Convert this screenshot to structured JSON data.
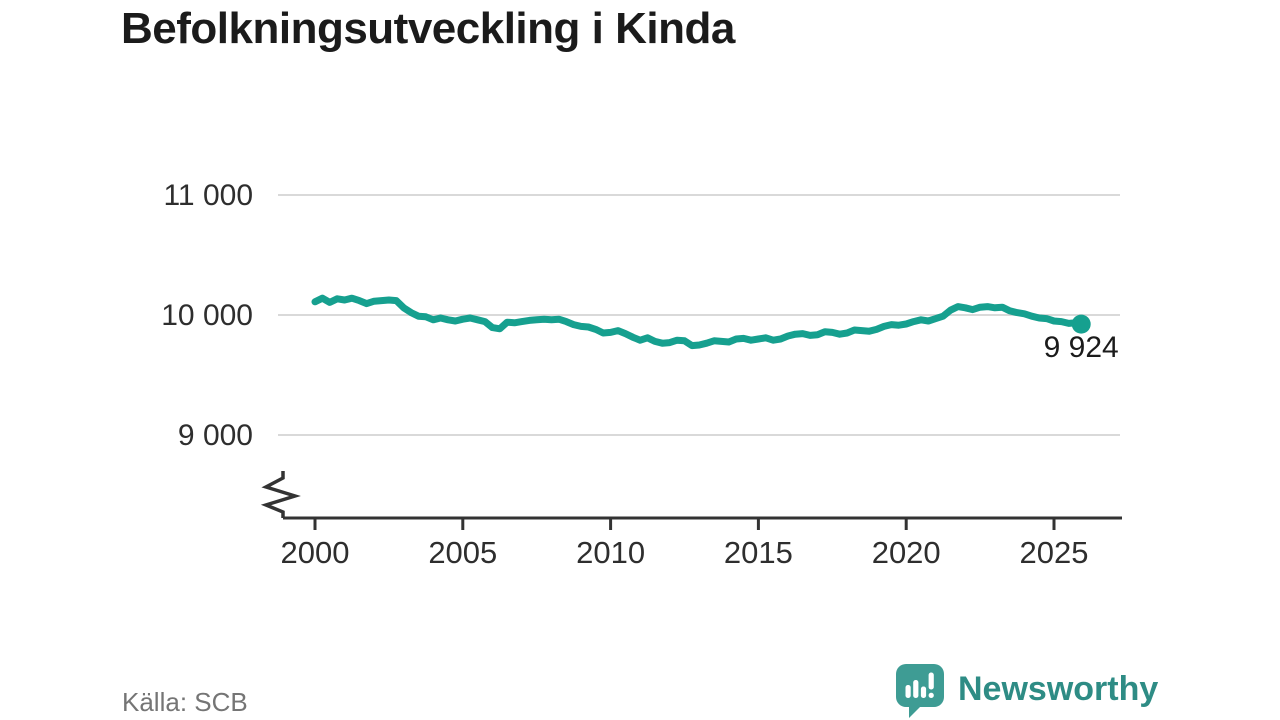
{
  "title": "Befolkningsutveckling i Kinda",
  "source": {
    "label": "Källa: SCB"
  },
  "brand": {
    "name": "Newsworthy",
    "icon_color": "#3e9c94",
    "text_color": "#2e8c85"
  },
  "chart_data": {
    "type": "line",
    "title": "Befolkningsutveckling i Kinda",
    "xlabel": "",
    "ylabel": "",
    "unit": "invånare",
    "grid": "horizontal",
    "axis_break": true,
    "xlim": [
      1999,
      2027.3
    ],
    "ylim_displayed": [
      8700,
      11300
    ],
    "line_color": "#16a08f",
    "gridline_color": "#d9d9d9",
    "axis_color": "#333333",
    "y_ticks": [
      {
        "value": 11000,
        "label": "11 000"
      },
      {
        "value": 10000,
        "label": "10 000"
      },
      {
        "value": 9000,
        "label": "9 000"
      }
    ],
    "x_ticks": [
      {
        "value": 2000,
        "label": "2000"
      },
      {
        "value": 2005,
        "label": "2005"
      },
      {
        "value": 2010,
        "label": "2010"
      },
      {
        "value": 2015,
        "label": "2015"
      },
      {
        "value": 2020,
        "label": "2020"
      },
      {
        "value": 2025,
        "label": "2025"
      }
    ],
    "end_label": {
      "value": 9924,
      "label": "9 924"
    },
    "series": [
      {
        "name": "Befolkning i Kinda",
        "color": "#16a08f",
        "points": [
          [
            2000.0,
            10110
          ],
          [
            2000.25,
            10140
          ],
          [
            2000.5,
            10105
          ],
          [
            2000.75,
            10135
          ],
          [
            2001.0,
            10125
          ],
          [
            2001.25,
            10140
          ],
          [
            2001.5,
            10120
          ],
          [
            2001.75,
            10095
          ],
          [
            2002.0,
            10115
          ],
          [
            2002.25,
            10120
          ],
          [
            2002.5,
            10125
          ],
          [
            2002.75,
            10120
          ],
          [
            2003.0,
            10060
          ],
          [
            2003.25,
            10020
          ],
          [
            2003.5,
            9990
          ],
          [
            2003.75,
            9985
          ],
          [
            2004.0,
            9960
          ],
          [
            2004.25,
            9975
          ],
          [
            2004.5,
            9960
          ],
          [
            2004.75,
            9950
          ],
          [
            2005.0,
            9965
          ],
          [
            2005.25,
            9975
          ],
          [
            2005.5,
            9960
          ],
          [
            2005.75,
            9945
          ],
          [
            2006.0,
            9895
          ],
          [
            2006.25,
            9885
          ],
          [
            2006.5,
            9940
          ],
          [
            2006.75,
            9935
          ],
          [
            2007.0,
            9945
          ],
          [
            2007.25,
            9955
          ],
          [
            2007.5,
            9960
          ],
          [
            2007.75,
            9965
          ],
          [
            2008.0,
            9960
          ],
          [
            2008.25,
            9965
          ],
          [
            2008.5,
            9945
          ],
          [
            2008.75,
            9920
          ],
          [
            2009.0,
            9905
          ],
          [
            2009.25,
            9900
          ],
          [
            2009.5,
            9880
          ],
          [
            2009.75,
            9850
          ],
          [
            2010.0,
            9855
          ],
          [
            2010.25,
            9870
          ],
          [
            2010.5,
            9845
          ],
          [
            2010.75,
            9815
          ],
          [
            2011.0,
            9790
          ],
          [
            2011.25,
            9810
          ],
          [
            2011.5,
            9780
          ],
          [
            2011.75,
            9765
          ],
          [
            2012.0,
            9770
          ],
          [
            2012.25,
            9790
          ],
          [
            2012.5,
            9785
          ],
          [
            2012.75,
            9745
          ],
          [
            2013.0,
            9750
          ],
          [
            2013.25,
            9765
          ],
          [
            2013.5,
            9785
          ],
          [
            2013.75,
            9780
          ],
          [
            2014.0,
            9775
          ],
          [
            2014.25,
            9800
          ],
          [
            2014.5,
            9805
          ],
          [
            2014.75,
            9790
          ],
          [
            2015.0,
            9800
          ],
          [
            2015.25,
            9810
          ],
          [
            2015.5,
            9790
          ],
          [
            2015.75,
            9800
          ],
          [
            2016.0,
            9825
          ],
          [
            2016.25,
            9840
          ],
          [
            2016.5,
            9845
          ],
          [
            2016.75,
            9830
          ],
          [
            2017.0,
            9835
          ],
          [
            2017.25,
            9860
          ],
          [
            2017.5,
            9855
          ],
          [
            2017.75,
            9840
          ],
          [
            2018.0,
            9850
          ],
          [
            2018.25,
            9875
          ],
          [
            2018.5,
            9870
          ],
          [
            2018.75,
            9865
          ],
          [
            2019.0,
            9880
          ],
          [
            2019.25,
            9905
          ],
          [
            2019.5,
            9920
          ],
          [
            2019.75,
            9915
          ],
          [
            2020.0,
            9925
          ],
          [
            2020.25,
            9945
          ],
          [
            2020.5,
            9960
          ],
          [
            2020.75,
            9950
          ],
          [
            2021.0,
            9970
          ],
          [
            2021.25,
            9990
          ],
          [
            2021.5,
            10040
          ],
          [
            2021.75,
            10070
          ],
          [
            2022.0,
            10060
          ],
          [
            2022.25,
            10045
          ],
          [
            2022.5,
            10065
          ],
          [
            2022.75,
            10070
          ],
          [
            2023.0,
            10060
          ],
          [
            2023.25,
            10065
          ],
          [
            2023.5,
            10035
          ],
          [
            2023.75,
            10020
          ],
          [
            2024.0,
            10010
          ],
          [
            2024.25,
            9990
          ],
          [
            2024.5,
            9975
          ],
          [
            2024.75,
            9970
          ],
          [
            2025.0,
            9950
          ],
          [
            2025.25,
            9945
          ],
          [
            2025.5,
            9930
          ],
          [
            2025.75,
            9935
          ],
          [
            2025.92,
            9924
          ]
        ]
      }
    ]
  }
}
